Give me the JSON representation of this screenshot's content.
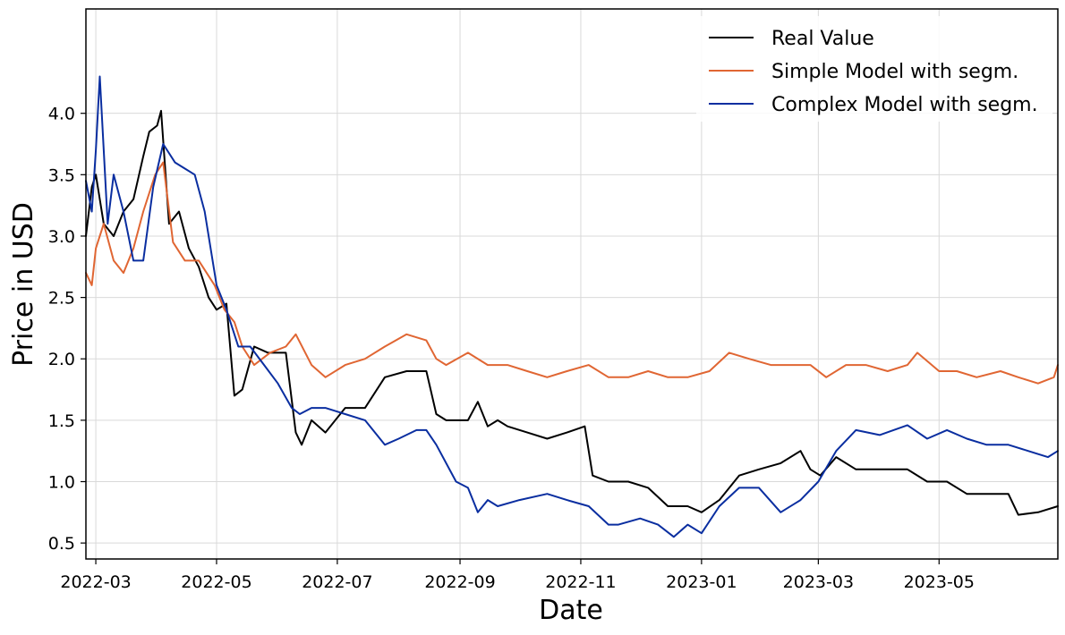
{
  "chart_data": {
    "type": "line",
    "title": "",
    "xlabel": "Date",
    "ylabel": "Price in USD",
    "x_tick_labels": [
      "2022-03",
      "2022-05",
      "2022-07",
      "2022-09",
      "2022-11",
      "2023-01",
      "2023-03",
      "2023-05"
    ],
    "y_tick_labels": [
      "0.5",
      "1.0",
      "1.5",
      "2.0",
      "2.5",
      "3.0",
      "3.5",
      "4.0"
    ],
    "xlim": [
      "2022-02-24",
      "2023-06-30"
    ],
    "ylim": [
      0.37,
      4.85
    ],
    "grid": true,
    "legend_position": "top-right",
    "series": [
      {
        "name": "Real Value",
        "color": "#000000",
        "x": [
          "2022-02-24",
          "2022-02-27",
          "2022-03-01",
          "2022-03-05",
          "2022-03-10",
          "2022-03-15",
          "2022-03-20",
          "2022-03-25",
          "2022-03-28",
          "2022-04-01",
          "2022-04-03",
          "2022-04-07",
          "2022-04-12",
          "2022-04-17",
          "2022-04-22",
          "2022-04-27",
          "2022-05-01",
          "2022-05-06",
          "2022-05-10",
          "2022-05-14",
          "2022-05-20",
          "2022-05-27",
          "2022-06-05",
          "2022-06-10",
          "2022-06-13",
          "2022-06-18",
          "2022-06-25",
          "2022-07-05",
          "2022-07-15",
          "2022-07-25",
          "2022-08-05",
          "2022-08-15",
          "2022-08-20",
          "2022-08-25",
          "2022-09-05",
          "2022-09-10",
          "2022-09-15",
          "2022-09-20",
          "2022-09-25",
          "2022-10-05",
          "2022-10-15",
          "2022-10-25",
          "2022-11-03",
          "2022-11-07",
          "2022-11-15",
          "2022-11-25",
          "2022-12-05",
          "2022-12-15",
          "2022-12-25",
          "2023-01-01",
          "2023-01-10",
          "2023-01-20",
          "2023-01-30",
          "2023-02-10",
          "2023-02-20",
          "2023-02-25",
          "2023-03-02",
          "2023-03-10",
          "2023-03-20",
          "2023-04-01",
          "2023-04-15",
          "2023-04-25",
          "2023-05-05",
          "2023-05-15",
          "2023-05-25",
          "2023-06-05",
          "2023-06-10",
          "2023-06-20",
          "2023-06-30"
        ],
        "values": [
          3.0,
          3.4,
          3.5,
          3.1,
          3.0,
          3.2,
          3.3,
          3.65,
          3.85,
          3.9,
          4.02,
          3.1,
          3.2,
          2.9,
          2.75,
          2.5,
          2.4,
          2.45,
          1.7,
          1.75,
          2.1,
          2.05,
          2.05,
          1.4,
          1.3,
          1.5,
          1.4,
          1.6,
          1.6,
          1.85,
          1.9,
          1.9,
          1.55,
          1.5,
          1.5,
          1.65,
          1.45,
          1.5,
          1.45,
          1.4,
          1.35,
          1.4,
          1.45,
          1.05,
          1.0,
          1.0,
          0.95,
          0.8,
          0.8,
          0.75,
          0.85,
          1.05,
          1.1,
          1.15,
          1.25,
          1.1,
          1.05,
          1.2,
          1.1,
          1.1,
          1.1,
          1.0,
          1.0,
          0.9,
          0.9,
          0.9,
          0.73,
          0.75,
          0.8
        ]
      },
      {
        "name": "Simple Model with segm.",
        "color": "#e06633",
        "x": [
          "2022-02-24",
          "2022-02-27",
          "2022-03-01",
          "2022-03-05",
          "2022-03-10",
          "2022-03-15",
          "2022-03-20",
          "2022-03-25",
          "2022-03-31",
          "2022-04-04",
          "2022-04-09",
          "2022-04-15",
          "2022-04-22",
          "2022-04-30",
          "2022-05-05",
          "2022-05-10",
          "2022-05-14",
          "2022-05-20",
          "2022-05-28",
          "2022-06-05",
          "2022-06-10",
          "2022-06-18",
          "2022-06-25",
          "2022-07-05",
          "2022-07-15",
          "2022-07-25",
          "2022-08-05",
          "2022-08-15",
          "2022-08-20",
          "2022-08-25",
          "2022-09-05",
          "2022-09-15",
          "2022-09-25",
          "2022-10-05",
          "2022-10-15",
          "2022-10-25",
          "2022-11-05",
          "2022-11-15",
          "2022-11-25",
          "2022-12-05",
          "2022-12-15",
          "2022-12-25",
          "2023-01-05",
          "2023-01-15",
          "2023-01-25",
          "2023-02-05",
          "2023-02-15",
          "2023-02-25",
          "2023-03-05",
          "2023-03-15",
          "2023-03-25",
          "2023-04-05",
          "2023-04-15",
          "2023-04-20",
          "2023-05-01",
          "2023-05-10",
          "2023-05-20",
          "2023-06-01",
          "2023-06-10",
          "2023-06-20",
          "2023-06-28",
          "2023-06-30"
        ],
        "values": [
          2.7,
          2.6,
          2.9,
          3.1,
          2.8,
          2.7,
          2.9,
          3.2,
          3.5,
          3.6,
          2.95,
          2.8,
          2.8,
          2.6,
          2.4,
          2.3,
          2.1,
          1.95,
          2.05,
          2.1,
          2.2,
          1.95,
          1.85,
          1.95,
          2.0,
          2.1,
          2.2,
          2.15,
          2.0,
          1.95,
          2.05,
          1.95,
          1.95,
          1.9,
          1.85,
          1.9,
          1.95,
          1.85,
          1.85,
          1.9,
          1.85,
          1.85,
          1.9,
          2.05,
          2.0,
          1.95,
          1.95,
          1.95,
          1.85,
          1.95,
          1.95,
          1.9,
          1.95,
          2.05,
          1.9,
          1.9,
          1.85,
          1.9,
          1.85,
          1.8,
          1.85,
          1.95
        ]
      },
      {
        "name": "Complex Model with segm.",
        "color": "#0a2ea0",
        "x": [
          "2022-02-24",
          "2022-02-27",
          "2022-03-01",
          "2022-03-03",
          "2022-03-07",
          "2022-03-10",
          "2022-03-15",
          "2022-03-20",
          "2022-03-25",
          "2022-03-30",
          "2022-04-04",
          "2022-04-10",
          "2022-04-15",
          "2022-04-20",
          "2022-04-25",
          "2022-05-01",
          "2022-05-06",
          "2022-05-12",
          "2022-05-18",
          "2022-05-25",
          "2022-06-01",
          "2022-06-08",
          "2022-06-12",
          "2022-06-18",
          "2022-06-25",
          "2022-07-05",
          "2022-07-15",
          "2022-07-25",
          "2022-08-01",
          "2022-08-10",
          "2022-08-15",
          "2022-08-20",
          "2022-08-30",
          "2022-09-05",
          "2022-09-10",
          "2022-09-15",
          "2022-09-20",
          "2022-10-01",
          "2022-10-15",
          "2022-10-25",
          "2022-11-05",
          "2022-11-15",
          "2022-11-20",
          "2022-12-01",
          "2022-12-10",
          "2022-12-18",
          "2022-12-25",
          "2023-01-01",
          "2023-01-10",
          "2023-01-20",
          "2023-01-30",
          "2023-02-10",
          "2023-02-20",
          "2023-03-01",
          "2023-03-10",
          "2023-03-20",
          "2023-04-01",
          "2023-04-15",
          "2023-04-25",
          "2023-05-05",
          "2023-05-15",
          "2023-05-25",
          "2023-06-05",
          "2023-06-15",
          "2023-06-25",
          "2023-06-30"
        ],
        "values": [
          3.45,
          3.2,
          3.7,
          4.3,
          3.1,
          3.5,
          3.2,
          2.8,
          2.8,
          3.4,
          3.75,
          3.6,
          3.55,
          3.5,
          3.2,
          2.6,
          2.4,
          2.1,
          2.1,
          1.95,
          1.8,
          1.6,
          1.55,
          1.6,
          1.6,
          1.55,
          1.5,
          1.3,
          1.35,
          1.42,
          1.42,
          1.3,
          1.0,
          0.95,
          0.75,
          0.85,
          0.8,
          0.85,
          0.9,
          0.85,
          0.8,
          0.65,
          0.65,
          0.7,
          0.65,
          0.55,
          0.65,
          0.58,
          0.8,
          0.95,
          0.95,
          0.75,
          0.85,
          1.0,
          1.25,
          1.42,
          1.38,
          1.46,
          1.35,
          1.42,
          1.35,
          1.3,
          1.3,
          1.25,
          1.2,
          1.25
        ]
      }
    ]
  }
}
